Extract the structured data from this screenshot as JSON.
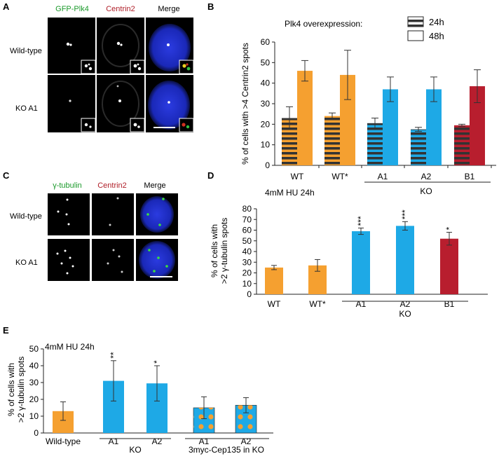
{
  "panels": {
    "A": {
      "letter": "A",
      "col_labels": [
        "GFP-Plk4",
        "Centrin2",
        "Merge"
      ],
      "col_colors": [
        "#1a9a2a",
        "#b0202a",
        "#222222"
      ],
      "row_labels": [
        "Wild-type",
        "KO A1"
      ]
    },
    "C": {
      "letter": "C",
      "col_labels": [
        "γ-tubulin",
        "Centrin2",
        "Merge"
      ],
      "col_colors": [
        "#1a9a2a",
        "#b0202a",
        "#222222"
      ],
      "row_labels": [
        "Wild-type",
        "KO A1"
      ]
    },
    "B_letter": "B",
    "D_letter": "D",
    "E_letter": "E"
  },
  "colors": {
    "wt": "#F5A030",
    "ko_blue": "#1EA9E6",
    "ko_red": "#B81E2E",
    "dot": "#F5A030",
    "stripe": "#333333",
    "dapi": "#1e2ec8"
  },
  "chart_data": [
    {
      "id": "B",
      "type": "bar",
      "subtitle": "Plk4 overexpression:",
      "legend": [
        "24h",
        "48h"
      ],
      "ylabel": "% of cells with >4 Centrin2 spots",
      "ylim": [
        0,
        60
      ],
      "yticks": [
        0,
        10,
        20,
        30,
        40,
        50,
        60
      ],
      "categories": [
        "WT",
        "WT*",
        "A1",
        "A2",
        "B1"
      ],
      "group_label": "KO",
      "series": [
        {
          "name": "24h",
          "values": [
            23,
            24,
            20.5,
            17.5,
            19.5
          ],
          "errors": [
            5.5,
            1.5,
            2.5,
            1,
            0.5
          ]
        },
        {
          "name": "48h",
          "values": [
            46,
            44,
            37,
            37,
            38.5
          ],
          "errors": [
            5,
            12,
            6,
            6,
            8
          ]
        }
      ]
    },
    {
      "id": "D",
      "type": "bar",
      "subtitle": "4mM HU 24h",
      "ylabel_lines": [
        "% of cells with",
        ">2 γ-tubulin spots"
      ],
      "ylim": [
        0,
        80
      ],
      "yticks": [
        0,
        10,
        20,
        30,
        40,
        50,
        60,
        70,
        80
      ],
      "categories": [
        "WT",
        "WT*",
        "A1",
        "A2",
        "B1"
      ],
      "group_label": "KO",
      "values": [
        25,
        27,
        59,
        64,
        52
      ],
      "errors": [
        2,
        5.5,
        3,
        4,
        6
      ],
      "significance": [
        "",
        "",
        "***",
        "***",
        "*"
      ]
    },
    {
      "id": "E",
      "type": "bar",
      "subtitle": "4mM HU 24h",
      "ylabel_lines": [
        "% of cells with",
        ">2 γ-tubulin spots"
      ],
      "ylim": [
        0,
        50
      ],
      "yticks": [
        0,
        10,
        20,
        30,
        40,
        50
      ],
      "categories": [
        "Wild-type",
        "A1",
        "A2",
        "A1",
        "A2"
      ],
      "group_labels": [
        "KO",
        "3myc-Cep135 in KO"
      ],
      "values": [
        13,
        31,
        29.5,
        15,
        16.5
      ],
      "errors": [
        5.5,
        12,
        10.5,
        6.5,
        4.5
      ],
      "significance": [
        "",
        "**",
        "*",
        "",
        ""
      ]
    }
  ]
}
